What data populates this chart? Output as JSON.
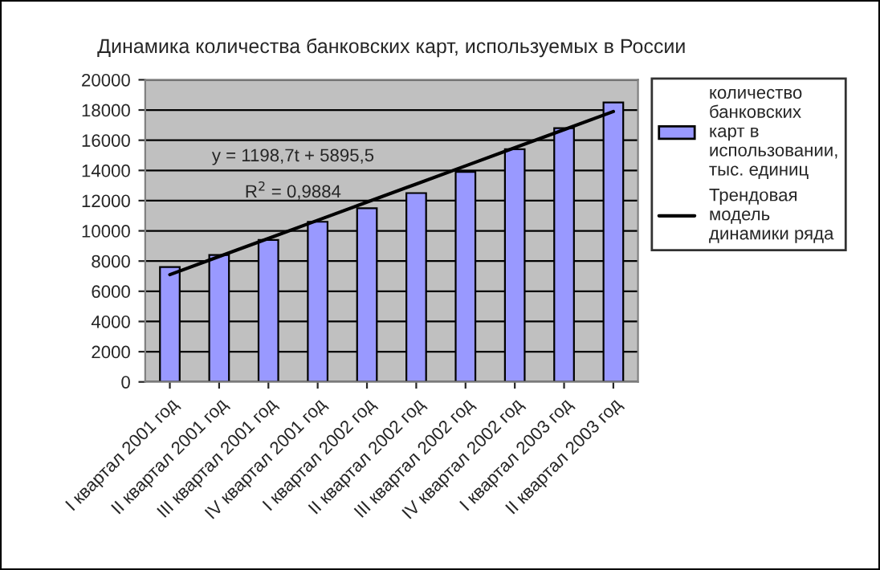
{
  "chart_data": {
    "type": "bar",
    "title": "Динамика количества банковских карт, используемых в России",
    "categories": [
      "I квартал 2001 год",
      "II квартал 2001 год",
      "III квартал 2001 год",
      "IV квартал 2001 год",
      "I квартал 2002 год",
      "II квартал 2002 год",
      "III квартал 2002 год",
      "IV квартал 2002 год",
      "I квартал 2003 год",
      "II квартал 2003 год"
    ],
    "series": [
      {
        "name": "количество банковских карт в использовании, тыс. единиц",
        "color": "#9999ff",
        "values": [
          7600,
          8400,
          9400,
          10600,
          11500,
          12500,
          13900,
          15400,
          16800,
          18500
        ]
      },
      {
        "name": "Трендовая модель динамики ряда",
        "type": "line",
        "color": "#000000",
        "values": [
          7100,
          8300,
          9500,
          10700,
          11900,
          13100,
          14300,
          15500,
          16700,
          17900
        ]
      }
    ],
    "annotations": [
      "y = 1198,7t + 5895,5",
      "R$^{2}$ = 0,9884"
    ],
    "ylim": [
      0,
      20000
    ],
    "yticks": [
      0,
      2000,
      4000,
      6000,
      8000,
      10000,
      12000,
      14000,
      16000,
      18000,
      20000
    ],
    "grid": "y",
    "legend": "right"
  }
}
